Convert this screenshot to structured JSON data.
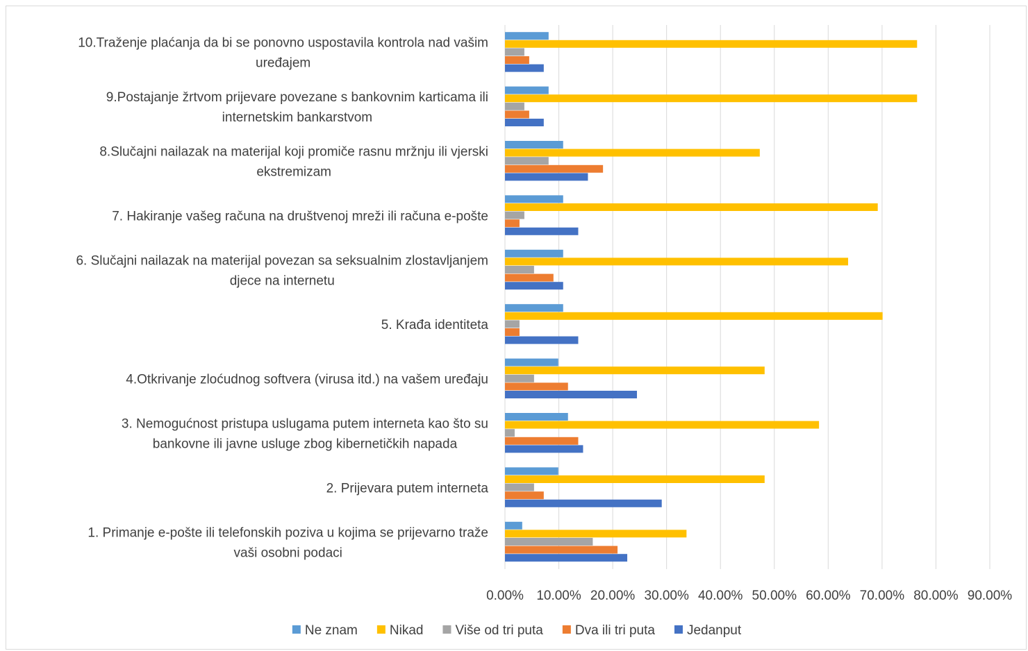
{
  "chart_data": {
    "type": "bar",
    "orientation": "horizontal",
    "title": "",
    "xlabel": "",
    "ylabel": "",
    "xlim": [
      0,
      0.9
    ],
    "ticks": [
      "0.00%",
      "10.00%",
      "20.00%",
      "30.00%",
      "40.00%",
      "50.00%",
      "60.00%",
      "70.00%",
      "80.00%",
      "90.00%"
    ],
    "grid": true,
    "legend_position": "bottom",
    "categories": [
      [
        "10.Traženje plaćanja da bi se ponovno uspostavila kontrola nad vašim",
        "uređajem"
      ],
      [
        "9.Postajanje žrtvom prijevare povezane s bankovnim karticama ili",
        "internetskim bankarstvom"
      ],
      [
        "8.Slučajni nailazak na materijal koji promiče rasnu mržnju ili vjerski",
        "ekstremizam"
      ],
      [
        "7. Hakiranje vašeg računa na društvenoj mreži ili računa e-pošte"
      ],
      [
        "6. Slučajni nailazak na materijal povezan sa seksualnim zlostavljanjem",
        "djece na internetu"
      ],
      [
        "5. Krađa identiteta"
      ],
      [
        "4.Otkrivanje zloćudnog softvera (virusa itd.) na vašem uređaju"
      ],
      [
        "3. Nemogućnost pristupa uslugama putem interneta kao što su",
        "bankovne ili javne usluge zbog kibernetičkih napada"
      ],
      [
        "2. Prijevara putem interneta"
      ],
      [
        "1. Primanje e-pošte ili telefonskih poziva u kojima se prijevarno traže",
        "vaši osobni podaci"
      ]
    ],
    "series": [
      {
        "name": "Ne znam",
        "color": "#5b9bd5",
        "values": [
          0.081,
          0.081,
          0.108,
          0.108,
          0.108,
          0.108,
          0.099,
          0.117,
          0.099,
          0.032
        ]
      },
      {
        "name": "Nikad",
        "color": "#ffc000",
        "values": [
          0.765,
          0.765,
          0.473,
          0.692,
          0.637,
          0.701,
          0.482,
          0.583,
          0.482,
          0.337
        ]
      },
      {
        "name": "Više od tri puta",
        "color": "#a5a5a5",
        "values": [
          0.036,
          0.036,
          0.081,
          0.036,
          0.054,
          0.027,
          0.054,
          0.018,
          0.054,
          0.163
        ]
      },
      {
        "name": "Dva ili tri puta",
        "color": "#ed7d31",
        "values": [
          0.045,
          0.045,
          0.182,
          0.027,
          0.09,
          0.027,
          0.117,
          0.136,
          0.072,
          0.209
        ]
      },
      {
        "name": "Jedanput",
        "color": "#4472c4",
        "values": [
          0.072,
          0.072,
          0.154,
          0.136,
          0.108,
          0.136,
          0.245,
          0.145,
          0.291,
          0.227
        ]
      }
    ]
  }
}
